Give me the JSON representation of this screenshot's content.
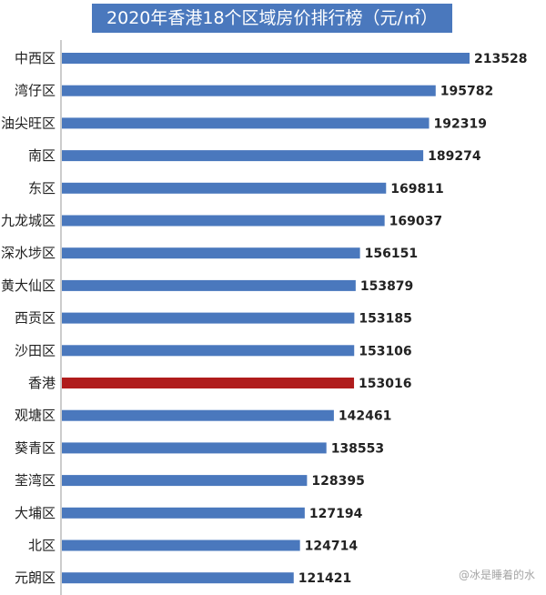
{
  "chart_data": {
    "type": "bar",
    "orientation": "horizontal",
    "title": "2020年香港18个区域房价排行榜（元/㎡）",
    "categories": [
      "中西区",
      "湾仔区",
      "油尖旺区",
      "南区",
      "东区",
      "九龙城区",
      "深水埗区",
      "黄大仙区",
      "西贡区",
      "沙田区",
      "香港",
      "观塘区",
      "葵青区",
      "荃湾区",
      "大埔区",
      "北区",
      "元朗区"
    ],
    "values": [
      213528,
      195782,
      192319,
      189274,
      169811,
      169037,
      156151,
      153879,
      153185,
      153106,
      153016,
      142461,
      138553,
      128395,
      127194,
      124714,
      121421
    ],
    "data_labels": [
      "213528",
      "195782",
      "192319",
      "189274",
      "169811",
      "169037",
      "156151",
      "153879",
      "153185",
      "153106",
      "153016",
      "142461",
      "138553",
      "128395",
      "127194",
      "124714",
      "121421"
    ],
    "highlight_category": "香港",
    "colors": {
      "bar": "#4a78bd",
      "highlight": "#b01c1c",
      "axis": "#999999"
    },
    "grid": false,
    "legend": "none"
  },
  "watermark": "@冰是睡着的水"
}
